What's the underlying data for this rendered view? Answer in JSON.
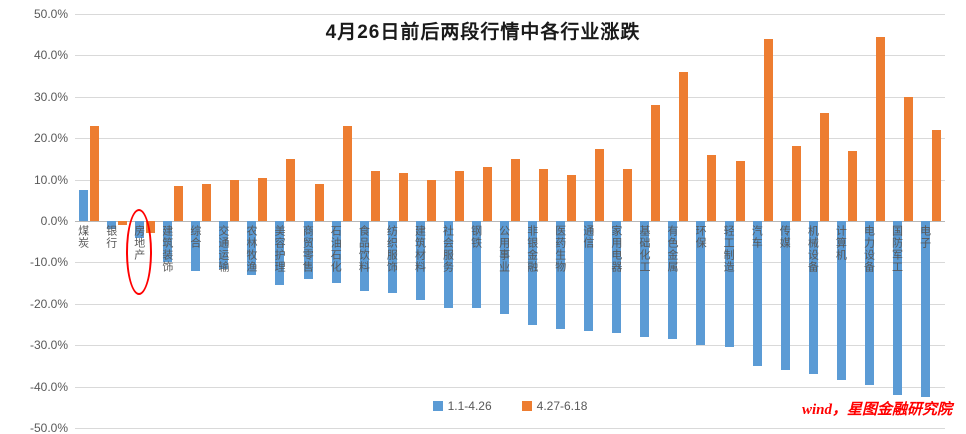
{
  "chart_data": {
    "type": "bar",
    "title": "4月26日前后两段行情中各行业涨跌",
    "xlabel": "",
    "ylabel": "",
    "ylim": [
      -50,
      50
    ],
    "grid": true,
    "legend_position": "bottom",
    "yticks": [
      {
        "value": 50,
        "label": "50.0%"
      },
      {
        "value": 40,
        "label": "40.0%"
      },
      {
        "value": 30,
        "label": "30.0%"
      },
      {
        "value": 20,
        "label": "20.0%"
      },
      {
        "value": 10,
        "label": "10.0%"
      },
      {
        "value": 0,
        "label": "0.0%"
      },
      {
        "value": -10,
        "label": "-10.0%"
      },
      {
        "value": -20,
        "label": "-20.0%"
      },
      {
        "value": -30,
        "label": "-30.0%"
      },
      {
        "value": -40,
        "label": "-40.0%"
      },
      {
        "value": -50,
        "label": "-50.0%"
      }
    ],
    "categories": [
      "煤炭",
      "银行",
      "房地产",
      "建筑装饰",
      "综合",
      "交通运输",
      "农林牧渔",
      "美容护理",
      "商贸零售",
      "石油石化",
      "食品饮料",
      "纺织服饰",
      "建筑材料",
      "社会服务",
      "钢铁",
      "公用事业",
      "非银金融",
      "医药生物",
      "通信",
      "家用电器",
      "基础化工",
      "有色金属",
      "环保",
      "轻工制造",
      "汽车",
      "传媒",
      "机械设备",
      "计算机",
      "电力设备",
      "国防军工",
      "电子"
    ],
    "series": [
      {
        "name": "1.1-4.26",
        "color": "#5b9bd5",
        "values": [
          7.5,
          -2,
          -4,
          -10,
          -12,
          -11.5,
          -13,
          -15.5,
          -14,
          -15,
          -17,
          -17.5,
          -19,
          -21,
          -21,
          -22.5,
          -25,
          -26,
          -26.5,
          -27,
          -28,
          -28.5,
          -30,
          -30.5,
          -35,
          -36,
          -37,
          -38.5,
          -39.5,
          -42,
          -42.5
        ]
      },
      {
        "name": "4.27-6.18",
        "color": "#ed7d31",
        "values": [
          23,
          -1,
          -3,
          8.5,
          9,
          10,
          10.5,
          15,
          9,
          23,
          12,
          11.5,
          10,
          12,
          13,
          15,
          12.5,
          11,
          17.5,
          12.5,
          28,
          36,
          16,
          14.5,
          44,
          18,
          26,
          17,
          44.5,
          30,
          22
        ]
      }
    ],
    "highlight": {
      "category_index": 2,
      "category": "房地产",
      "shape": "ellipse",
      "color": "#ff0000"
    }
  },
  "footer": {
    "source": "wind，星图金融研究院"
  }
}
